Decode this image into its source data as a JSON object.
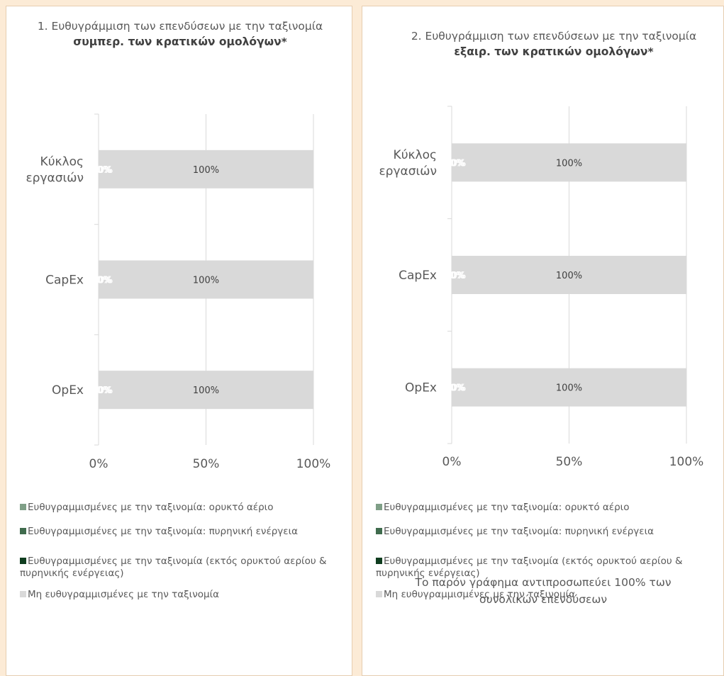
{
  "chart_data": [
    {
      "type": "bar",
      "stacked": true,
      "orientation": "horizontal",
      "title_prefix": "1. Ευθυγράμμιση των επενδύσεων με την ταξινομία ",
      "title_bold": "συμπερ. των κρατικών ομολόγων*",
      "categories": [
        "Κύκλος εργασιών",
        "CapEx",
        "OpEx"
      ],
      "series": [
        {
          "name": "Ευθυγραμμισμένες με την ταξινομία: ορυκτό αέριο",
          "values": [
            0,
            0,
            0
          ],
          "labels": [
            "0%",
            "0%",
            "0%"
          ]
        },
        {
          "name": "Ευθυγραμμισμένες με την ταξινομία: πυρηνική ενέργεια",
          "values": [
            0,
            0,
            0
          ],
          "labels": [
            "0%",
            "0%",
            "0%"
          ]
        },
        {
          "name": "Ευθυγραμμισμένες με την ταξινομία (εκτός ορυκτού αερίου & πυρηνικής ενέργειας)",
          "values": [
            0,
            0,
            0
          ],
          "labels": [
            "0%",
            "0%",
            "0%"
          ]
        },
        {
          "name": "Μη ευθυγραμμισμένες με την ταξινομία",
          "values": [
            100,
            100,
            100
          ],
          "labels": [
            "100%",
            "100%",
            "100%"
          ]
        }
      ],
      "xlim": [
        0,
        100
      ],
      "xticks": [
        "0%",
        "50%",
        "100%"
      ],
      "grid": true,
      "legend_position": "bottom"
    },
    {
      "type": "bar",
      "stacked": true,
      "orientation": "horizontal",
      "title_prefix": "2. Ευθυγράμμιση των επενδύσεων με την ταξινομία ",
      "title_bold": "εξαιρ. των κρατικών ομολόγων*",
      "categories": [
        "Κύκλος εργασιών",
        "CapEx",
        "OpEx"
      ],
      "series": [
        {
          "name": "Ευθυγραμμισμένες με την ταξινομία: ορυκτό αέριο",
          "values": [
            0,
            0,
            0
          ],
          "labels": [
            "0%",
            "0%",
            "0%"
          ]
        },
        {
          "name": "Ευθυγραμμισμένες με την ταξινομία: πυρηνική ενέργεια",
          "values": [
            0,
            0,
            0
          ],
          "labels": [
            "0%",
            "0%",
            "0%"
          ]
        },
        {
          "name": "Ευθυγραμμισμένες με την ταξινομία (εκτός ορυκτού αερίου & πυρηνικής ενέργειας)",
          "values": [
            0,
            0,
            0
          ],
          "labels": [
            "0%",
            "0%",
            "0%"
          ]
        },
        {
          "name": "Μη ευθυγραμμισμένες με την ταξινομία",
          "values": [
            100,
            100,
            100
          ],
          "labels": [
            "100%",
            "100%",
            "100%"
          ]
        }
      ],
      "xlim": [
        0,
        100
      ],
      "xticks": [
        "0%",
        "50%",
        "100%"
      ],
      "grid": true,
      "legend_position": "bottom",
      "note": "Το παρόν γράφημα αντιπροσωπεύει 100% των συνολικών επενδύσεων"
    }
  ],
  "colors": {
    "series": [
      "#7F9F87",
      "#3F6B4D",
      "#0F3D1F",
      "#D9D9D9"
    ],
    "panel_background": "#FFFFFF",
    "page_background": "#FCEBD6",
    "grid": "#D9D9D9",
    "text": "#595959"
  }
}
